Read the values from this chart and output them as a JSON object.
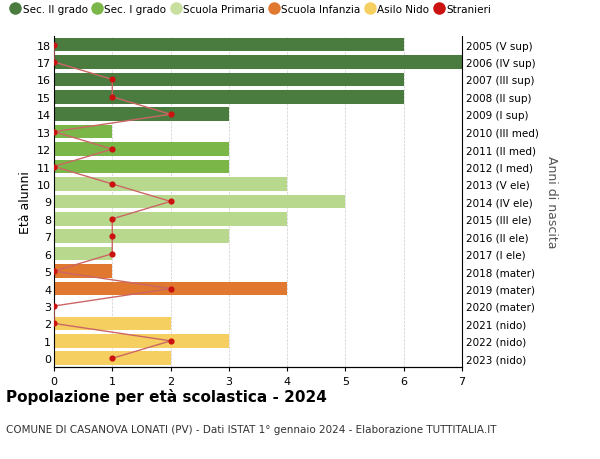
{
  "ages": [
    18,
    17,
    16,
    15,
    14,
    13,
    12,
    11,
    10,
    9,
    8,
    7,
    6,
    5,
    4,
    3,
    2,
    1,
    0
  ],
  "years": [
    "2005 (V sup)",
    "2006 (IV sup)",
    "2007 (III sup)",
    "2008 (II sup)",
    "2009 (I sup)",
    "2010 (III med)",
    "2011 (II med)",
    "2012 (I med)",
    "2013 (V ele)",
    "2014 (IV ele)",
    "2015 (III ele)",
    "2016 (II ele)",
    "2017 (I ele)",
    "2018 (mater)",
    "2019 (mater)",
    "2020 (mater)",
    "2021 (nido)",
    "2022 (nido)",
    "2023 (nido)"
  ],
  "bar_values": [
    6,
    7,
    6,
    6,
    3,
    1,
    3,
    3,
    4,
    5,
    4,
    3,
    1,
    1,
    4,
    0,
    2,
    3,
    2
  ],
  "bar_colors": [
    "#4a7c3f",
    "#4a7c3f",
    "#4a7c3f",
    "#4a7c3f",
    "#4a7c3f",
    "#7ab648",
    "#7ab648",
    "#7ab648",
    "#b8d98d",
    "#b8d98d",
    "#b8d98d",
    "#b8d98d",
    "#b8d98d",
    "#e07830",
    "#e07830",
    "#e07830",
    "#f5d060",
    "#f5d060",
    "#f5d060"
  ],
  "stranieri_values": [
    0,
    0,
    1,
    1,
    2,
    0,
    1,
    0,
    1,
    2,
    1,
    1,
    1,
    0,
    2,
    0,
    0,
    2,
    1
  ],
  "legend_labels": [
    "Sec. II grado",
    "Sec. I grado",
    "Scuola Primaria",
    "Scuola Infanzia",
    "Asilo Nido",
    "Stranieri"
  ],
  "legend_colors": [
    "#4a7c3f",
    "#7ab648",
    "#c8dfa0",
    "#e07830",
    "#f5d060",
    "#cc1111"
  ],
  "title": "Popolazione per età scolastica - 2024",
  "subtitle": "COMUNE DI CASANOVA LONATI (PV) - Dati ISTAT 1° gennaio 2024 - Elaborazione TUTTITALIA.IT",
  "ylabel_left": "Età alunni",
  "ylabel_right": "Anni di nascita",
  "xlim": [
    0,
    7
  ],
  "background_color": "#ffffff",
  "stranieri_color": "#cc1111",
  "stranieri_line_color": "#cc6666",
  "bar_height": 0.78,
  "grid_color": "#cccccc",
  "ytick_fontsize": 8,
  "xtick_fontsize": 8,
  "legend_fontsize": 7.5,
  "title_fontsize": 11,
  "subtitle_fontsize": 7.5
}
